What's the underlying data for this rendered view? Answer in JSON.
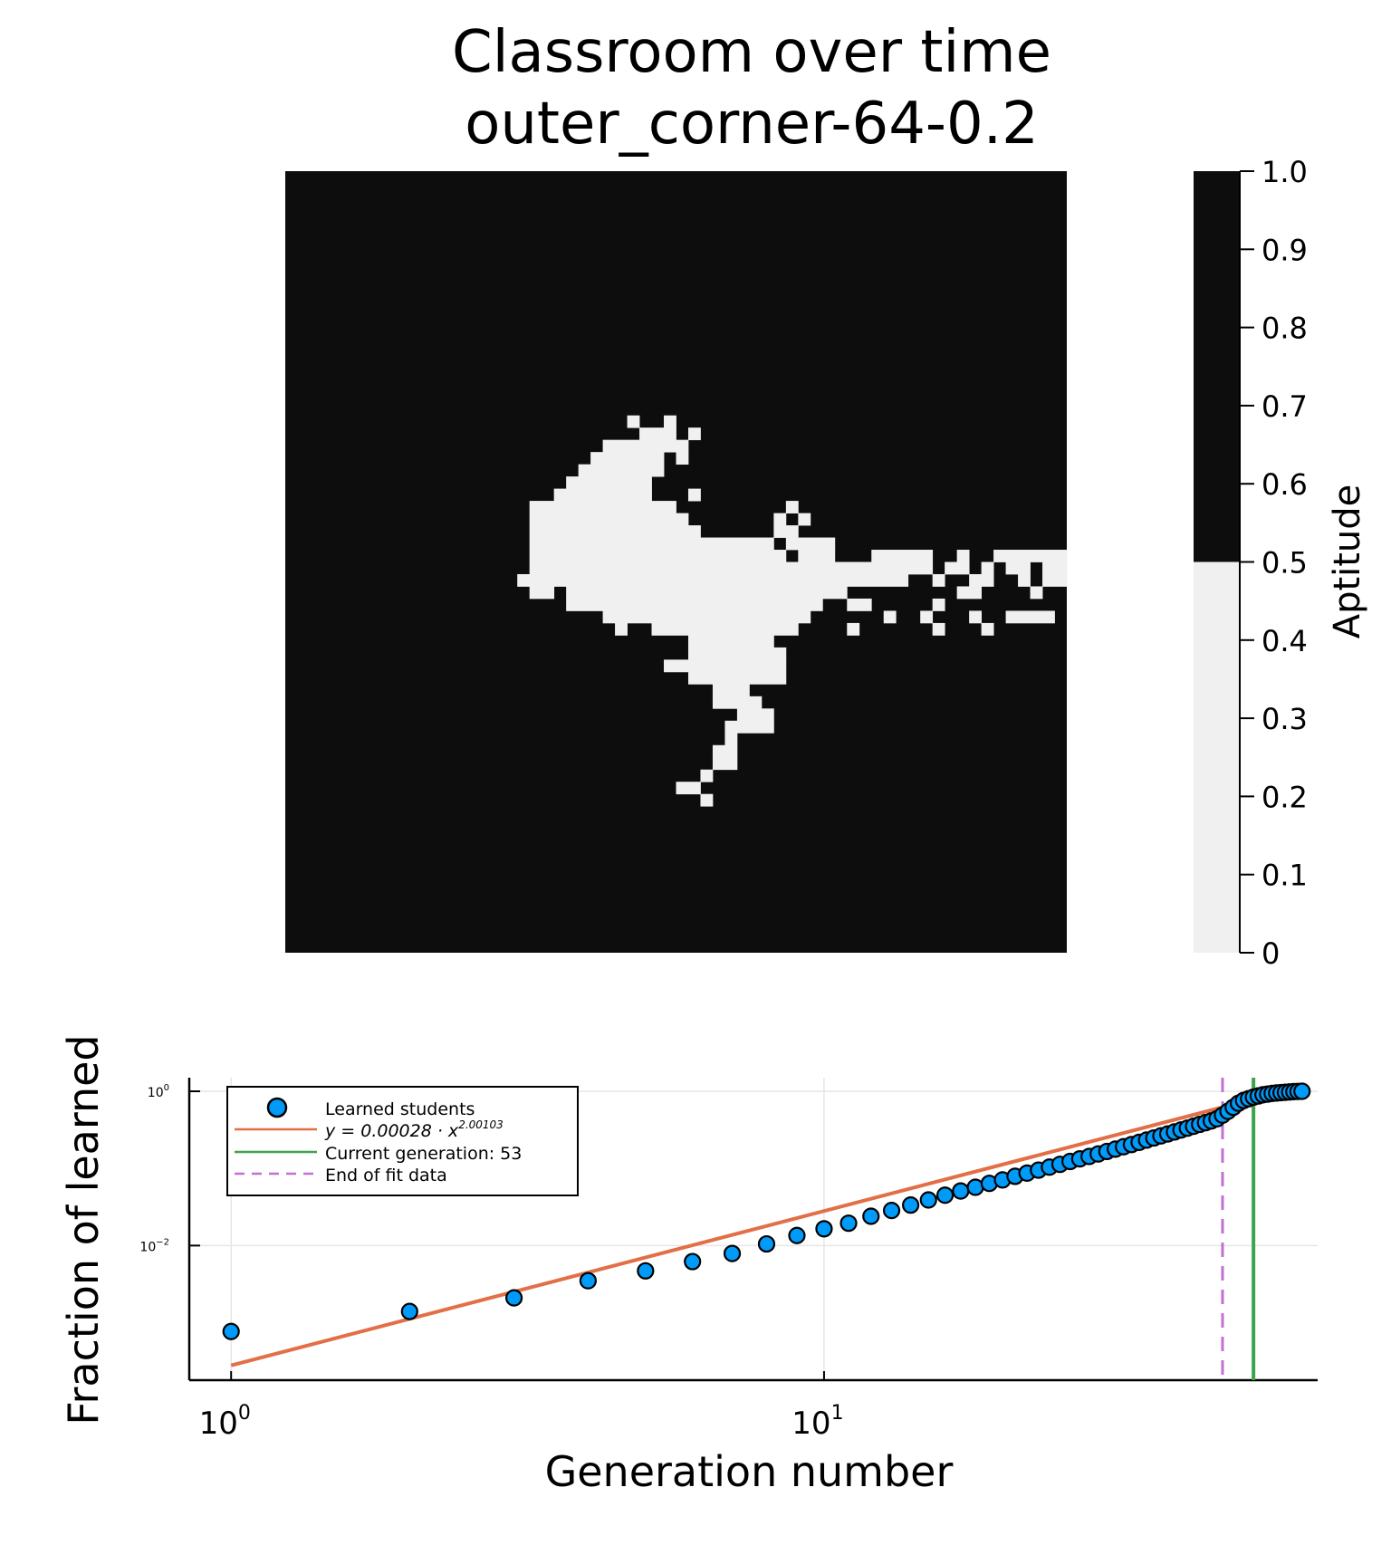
{
  "title_line1": "Classroom over time",
  "title_line2": "outer_corner-64-0.2",
  "colors": {
    "background": "#ffffff",
    "grid_dark": "#0d0d0d",
    "grid_light": "#f0f0f0",
    "scatter_fill": "#009af9",
    "fit_line": "#e26f46",
    "current_gen_line": "#3da44d",
    "end_fit_line": "#c271d2",
    "gridline": "#e6e6e6"
  },
  "chart_data": [
    {
      "type": "heatmap",
      "grid_size": 64,
      "value_range": [
        0,
        1
      ],
      "colorbar": {
        "label": "Aptitude",
        "ticks": [
          "1.0",
          "0.9",
          "0.8",
          "0.7",
          "0.6",
          "0.5",
          "0.4",
          "0.3",
          "0.2",
          "0.1",
          "0"
        ],
        "tick_values": [
          1.0,
          0.9,
          0.8,
          0.7,
          0.6,
          0.5,
          0.4,
          0.3,
          0.2,
          0.1,
          0.0
        ],
        "threshold": 0.5,
        "above_threshold_color": "#0d0d0d",
        "below_threshold_color": "#f0f0f0"
      },
      "default_value": 1,
      "low_value": 0,
      "low_runs": [
        [
          20,
          28,
          28
        ],
        [
          20,
          31,
          31
        ],
        [
          21,
          29,
          31
        ],
        [
          21,
          33,
          33
        ],
        [
          22,
          26,
          32
        ],
        [
          23,
          25,
          30
        ],
        [
          23,
          32,
          32
        ],
        [
          24,
          24,
          30
        ],
        [
          25,
          23,
          29
        ],
        [
          26,
          22,
          29
        ],
        [
          26,
          33,
          33
        ],
        [
          27,
          20,
          31
        ],
        [
          27,
          41,
          41
        ],
        [
          28,
          20,
          32
        ],
        [
          28,
          40,
          40
        ],
        [
          28,
          42,
          42
        ],
        [
          29,
          20,
          33
        ],
        [
          29,
          40,
          41
        ],
        [
          30,
          20,
          39
        ],
        [
          30,
          41,
          44
        ],
        [
          31,
          20,
          40
        ],
        [
          31,
          42,
          44
        ],
        [
          31,
          48,
          52
        ],
        [
          31,
          55,
          55
        ],
        [
          31,
          58,
          63
        ],
        [
          32,
          20,
          52
        ],
        [
          32,
          54,
          55
        ],
        [
          32,
          57,
          57
        ],
        [
          32,
          59,
          60
        ],
        [
          32,
          62,
          63
        ],
        [
          33,
          19,
          50
        ],
        [
          33,
          53,
          53
        ],
        [
          33,
          56,
          57
        ],
        [
          33,
          60,
          60
        ],
        [
          33,
          62,
          63
        ],
        [
          34,
          20,
          21
        ],
        [
          34,
          23,
          45
        ],
        [
          34,
          55,
          56
        ],
        [
          34,
          61,
          61
        ],
        [
          35,
          23,
          43
        ],
        [
          35,
          46,
          47
        ],
        [
          35,
          53,
          53
        ],
        [
          36,
          26,
          42
        ],
        [
          36,
          49,
          49
        ],
        [
          36,
          52,
          52
        ],
        [
          36,
          56,
          56
        ],
        [
          36,
          59,
          62
        ],
        [
          37,
          27,
          27
        ],
        [
          37,
          30,
          41
        ],
        [
          37,
          46,
          46
        ],
        [
          37,
          53,
          53
        ],
        [
          37,
          57,
          57
        ],
        [
          38,
          33,
          39
        ],
        [
          39,
          33,
          40
        ],
        [
          40,
          31,
          40
        ],
        [
          41,
          33,
          40
        ],
        [
          42,
          35,
          37
        ],
        [
          43,
          35,
          38
        ],
        [
          44,
          37,
          39
        ],
        [
          45,
          36,
          39
        ],
        [
          46,
          36,
          36
        ],
        [
          47,
          35,
          36
        ],
        [
          48,
          35,
          36
        ],
        [
          49,
          34,
          34
        ],
        [
          50,
          32,
          33
        ],
        [
          51,
          34,
          34
        ]
      ]
    },
    {
      "type": "scatter",
      "xlabel": "Generation number",
      "ylabel": "Fraction of learned",
      "x_scale": "log",
      "y_scale": "log",
      "xlim": [
        0.85,
        68
      ],
      "ylim": [
        0.00018,
        1.5
      ],
      "x_ticks": [
        {
          "base": "10",
          "exp": "0",
          "value": 1
        },
        {
          "base": "10",
          "exp": "1",
          "value": 10
        }
      ],
      "y_ticks": [
        {
          "base": "10",
          "exp": "0",
          "value": 1
        },
        {
          "base": "10",
          "exp": "−2",
          "value": 0.01
        }
      ],
      "grid": true,
      "legend_position": "top-left",
      "legend_entries": [
        {
          "label": "Learned students",
          "kind": "marker"
        },
        {
          "label": "y = 0.00028 · x",
          "superscript": "2.00103",
          "kind": "line"
        },
        {
          "label": "Current generation: 53",
          "kind": "line"
        },
        {
          "label": "End of fit data",
          "kind": "dashed"
        }
      ],
      "series": [
        {
          "name": "Learned students",
          "x": [
            1,
            2,
            3,
            4,
            5,
            6,
            7,
            8,
            9,
            10,
            11,
            12,
            13,
            14,
            15,
            16,
            17,
            18,
            19,
            20,
            21,
            22,
            23,
            24,
            25,
            26,
            27,
            28,
            29,
            30,
            31,
            32,
            33,
            34,
            35,
            36,
            37,
            38,
            39,
            40,
            41,
            42,
            43,
            44,
            45,
            46,
            47,
            48,
            49,
            50,
            51,
            52,
            53,
            54,
            55,
            56,
            57,
            58,
            59,
            60,
            61,
            62,
            63,
            64
          ],
          "y": [
            0.00077,
            0.0014,
            0.0021,
            0.0035,
            0.0047,
            0.0062,
            0.0079,
            0.0105,
            0.0135,
            0.0165,
            0.0195,
            0.024,
            0.0285,
            0.0335,
            0.039,
            0.045,
            0.051,
            0.057,
            0.064,
            0.071,
            0.079,
            0.087,
            0.095,
            0.104,
            0.113,
            0.123,
            0.133,
            0.143,
            0.154,
            0.166,
            0.178,
            0.191,
            0.204,
            0.218,
            0.233,
            0.248,
            0.264,
            0.28,
            0.297,
            0.315,
            0.333,
            0.352,
            0.372,
            0.392,
            0.413,
            0.44,
            0.49,
            0.55,
            0.62,
            0.7,
            0.76,
            0.8,
            0.84,
            0.87,
            0.9,
            0.92,
            0.94,
            0.95,
            0.96,
            0.97,
            0.98,
            0.99,
            0.995,
            1.0
          ]
        },
        {
          "name": "y = 0.00028 · x^2.00103",
          "a": 0.00028,
          "b": 2.00103,
          "x_range": [
            1,
            64
          ]
        }
      ],
      "vlines": [
        {
          "name": "Current generation: 53",
          "x": 53
        },
        {
          "name": "End of fit data",
          "x": 47
        }
      ]
    }
  ]
}
